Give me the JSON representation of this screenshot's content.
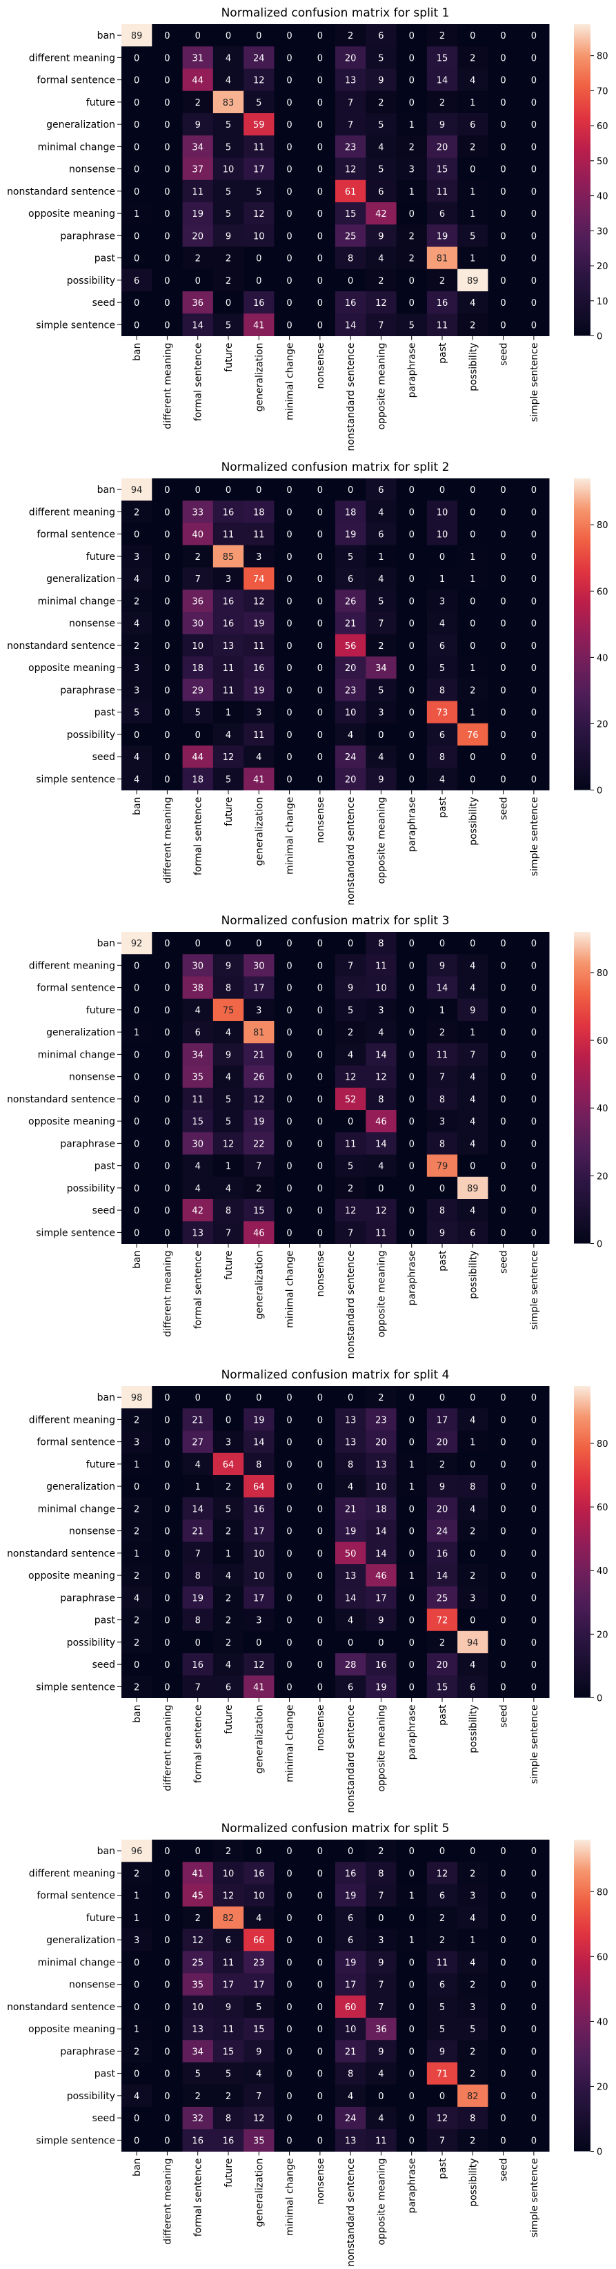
{
  "labels": [
    "ban",
    "different meaning",
    "formal sentence",
    "future",
    "generalization",
    "minimal change",
    "nonsense",
    "nonstandard sentence",
    "opposite meaning",
    "paraphrase",
    "past",
    "possibility",
    "seed",
    "simple sentence"
  ],
  "chart_data": [
    {
      "type": "heatmap",
      "title": "Normalized confusion matrix for split 1",
      "colorbar": {
        "min": 0,
        "max": 89,
        "ticks": [
          0,
          10,
          20,
          30,
          40,
          50,
          60,
          70,
          80
        ]
      },
      "values": [
        [
          89,
          0,
          0,
          0,
          0,
          0,
          0,
          2,
          6,
          0,
          2,
          0,
          0,
          0
        ],
        [
          0,
          0,
          31,
          4,
          24,
          0,
          0,
          20,
          5,
          0,
          15,
          2,
          0,
          0
        ],
        [
          0,
          0,
          44,
          4,
          12,
          0,
          0,
          13,
          9,
          0,
          14,
          4,
          0,
          0
        ],
        [
          0,
          0,
          2,
          83,
          5,
          0,
          0,
          7,
          2,
          0,
          2,
          1,
          0,
          0
        ],
        [
          0,
          0,
          9,
          5,
          59,
          0,
          0,
          7,
          5,
          1,
          9,
          6,
          0,
          0
        ],
        [
          0,
          0,
          34,
          5,
          11,
          0,
          0,
          23,
          4,
          2,
          20,
          2,
          0,
          0
        ],
        [
          0,
          0,
          37,
          10,
          17,
          0,
          0,
          12,
          5,
          3,
          15,
          0,
          0,
          0
        ],
        [
          0,
          0,
          11,
          5,
          5,
          0,
          0,
          61,
          6,
          1,
          11,
          1,
          0,
          0
        ],
        [
          1,
          0,
          19,
          5,
          12,
          0,
          0,
          15,
          42,
          0,
          6,
          1,
          0,
          0
        ],
        [
          0,
          0,
          20,
          9,
          10,
          0,
          0,
          25,
          9,
          2,
          19,
          5,
          0,
          0
        ],
        [
          0,
          0,
          2,
          2,
          0,
          0,
          0,
          8,
          4,
          2,
          81,
          1,
          0,
          0
        ],
        [
          6,
          0,
          0,
          2,
          0,
          0,
          0,
          0,
          2,
          0,
          2,
          89,
          0,
          0
        ],
        [
          0,
          0,
          36,
          0,
          16,
          0,
          0,
          16,
          12,
          0,
          16,
          4,
          0,
          0
        ],
        [
          0,
          0,
          14,
          5,
          41,
          0,
          0,
          14,
          7,
          5,
          11,
          2,
          0,
          0
        ]
      ]
    },
    {
      "type": "heatmap",
      "title": "Normalized confusion matrix for split 2",
      "colorbar": {
        "min": 0,
        "max": 94,
        "ticks": [
          0,
          20,
          40,
          60,
          80
        ]
      },
      "values": [
        [
          94,
          0,
          0,
          0,
          0,
          0,
          0,
          0,
          6,
          0,
          0,
          0,
          0,
          0
        ],
        [
          2,
          0,
          33,
          16,
          18,
          0,
          0,
          18,
          4,
          0,
          10,
          0,
          0,
          0
        ],
        [
          0,
          0,
          40,
          11,
          11,
          0,
          0,
          19,
          6,
          0,
          10,
          0,
          0,
          0
        ],
        [
          3,
          0,
          2,
          85,
          3,
          0,
          0,
          5,
          1,
          0,
          0,
          1,
          0,
          0
        ],
        [
          4,
          0,
          7,
          3,
          74,
          0,
          0,
          6,
          4,
          0,
          1,
          1,
          0,
          0
        ],
        [
          2,
          0,
          36,
          16,
          12,
          0,
          0,
          26,
          5,
          0,
          3,
          0,
          0,
          0
        ],
        [
          4,
          0,
          30,
          16,
          19,
          0,
          0,
          21,
          7,
          0,
          4,
          0,
          0,
          0
        ],
        [
          2,
          0,
          10,
          13,
          11,
          0,
          0,
          56,
          2,
          0,
          6,
          0,
          0,
          0
        ],
        [
          3,
          0,
          18,
          11,
          16,
          0,
          0,
          20,
          34,
          0,
          5,
          1,
          0,
          0
        ],
        [
          3,
          0,
          29,
          11,
          19,
          0,
          0,
          23,
          5,
          0,
          8,
          2,
          0,
          0
        ],
        [
          5,
          0,
          5,
          1,
          3,
          0,
          0,
          10,
          3,
          0,
          73,
          1,
          0,
          0
        ],
        [
          0,
          0,
          0,
          4,
          11,
          0,
          0,
          4,
          0,
          0,
          6,
          76,
          0,
          0
        ],
        [
          4,
          0,
          44,
          12,
          4,
          0,
          0,
          24,
          4,
          0,
          8,
          0,
          0,
          0
        ],
        [
          4,
          0,
          18,
          5,
          41,
          0,
          0,
          20,
          9,
          0,
          4,
          0,
          0,
          0
        ]
      ]
    },
    {
      "type": "heatmap",
      "title": "Normalized confusion matrix for split 3",
      "colorbar": {
        "min": 0,
        "max": 92,
        "ticks": [
          0,
          20,
          40,
          60,
          80
        ]
      },
      "values": [
        [
          92,
          0,
          0,
          0,
          0,
          0,
          0,
          0,
          8,
          0,
          0,
          0,
          0,
          0
        ],
        [
          0,
          0,
          30,
          9,
          30,
          0,
          0,
          7,
          11,
          0,
          9,
          4,
          0,
          0
        ],
        [
          0,
          0,
          38,
          8,
          17,
          0,
          0,
          9,
          10,
          0,
          14,
          4,
          0,
          0
        ],
        [
          0,
          0,
          4,
          75,
          3,
          0,
          0,
          5,
          3,
          0,
          1,
          9,
          0,
          0
        ],
        [
          1,
          0,
          6,
          4,
          81,
          0,
          0,
          2,
          4,
          0,
          2,
          1,
          0,
          0
        ],
        [
          0,
          0,
          34,
          9,
          21,
          0,
          0,
          4,
          14,
          0,
          11,
          7,
          0,
          0
        ],
        [
          0,
          0,
          35,
          4,
          26,
          0,
          0,
          12,
          12,
          0,
          7,
          4,
          0,
          0
        ],
        [
          0,
          0,
          11,
          5,
          12,
          0,
          0,
          52,
          8,
          0,
          8,
          4,
          0,
          0
        ],
        [
          0,
          0,
          15,
          5,
          19,
          0,
          0,
          0,
          46,
          0,
          3,
          4,
          0,
          0
        ],
        [
          0,
          0,
          30,
          12,
          22,
          0,
          0,
          11,
          14,
          0,
          8,
          4,
          0,
          0
        ],
        [
          0,
          0,
          4,
          1,
          7,
          0,
          0,
          5,
          4,
          0,
          79,
          0,
          0,
          0
        ],
        [
          0,
          0,
          4,
          4,
          2,
          0,
          0,
          2,
          0,
          0,
          0,
          89,
          0,
          0
        ],
        [
          0,
          0,
          42,
          8,
          15,
          0,
          0,
          12,
          12,
          0,
          8,
          4,
          0,
          0
        ],
        [
          0,
          0,
          13,
          7,
          46,
          0,
          0,
          7,
          11,
          0,
          9,
          6,
          0,
          0
        ]
      ]
    },
    {
      "type": "heatmap",
      "title": "Normalized confusion matrix for split 4",
      "colorbar": {
        "min": 0,
        "max": 98,
        "ticks": [
          0,
          20,
          40,
          60,
          80
        ]
      },
      "values": [
        [
          98,
          0,
          0,
          0,
          0,
          0,
          0,
          0,
          2,
          0,
          0,
          0,
          0,
          0
        ],
        [
          2,
          0,
          21,
          0,
          19,
          0,
          0,
          13,
          23,
          0,
          17,
          4,
          0,
          0
        ],
        [
          3,
          0,
          27,
          3,
          14,
          0,
          0,
          13,
          20,
          0,
          20,
          1,
          0,
          0
        ],
        [
          1,
          0,
          4,
          64,
          8,
          0,
          0,
          8,
          13,
          1,
          2,
          0,
          0,
          0
        ],
        [
          0,
          0,
          1,
          2,
          64,
          0,
          0,
          4,
          10,
          1,
          9,
          8,
          0,
          0
        ],
        [
          2,
          0,
          14,
          5,
          16,
          0,
          0,
          21,
          18,
          0,
          20,
          4,
          0,
          0
        ],
        [
          2,
          0,
          21,
          2,
          17,
          0,
          0,
          19,
          14,
          0,
          24,
          2,
          0,
          0
        ],
        [
          1,
          0,
          7,
          1,
          10,
          0,
          0,
          50,
          14,
          0,
          16,
          0,
          0,
          0
        ],
        [
          2,
          0,
          8,
          4,
          10,
          0,
          0,
          13,
          46,
          1,
          14,
          2,
          0,
          0
        ],
        [
          4,
          0,
          19,
          2,
          17,
          0,
          0,
          14,
          17,
          0,
          25,
          3,
          0,
          0
        ],
        [
          2,
          0,
          8,
          2,
          3,
          0,
          0,
          4,
          9,
          0,
          72,
          0,
          0,
          0
        ],
        [
          2,
          0,
          0,
          2,
          0,
          0,
          0,
          0,
          0,
          0,
          2,
          94,
          0,
          0
        ],
        [
          0,
          0,
          16,
          4,
          12,
          0,
          0,
          28,
          16,
          0,
          20,
          4,
          0,
          0
        ],
        [
          2,
          0,
          7,
          6,
          41,
          0,
          0,
          6,
          19,
          0,
          15,
          6,
          0,
          0
        ]
      ]
    },
    {
      "type": "heatmap",
      "title": "Normalized confusion matrix for split 5",
      "colorbar": {
        "min": 0,
        "max": 96,
        "ticks": [
          0,
          20,
          40,
          60,
          80
        ]
      },
      "values": [
        [
          96,
          0,
          0,
          2,
          0,
          0,
          0,
          0,
          2,
          0,
          0,
          0,
          0,
          0
        ],
        [
          2,
          0,
          41,
          10,
          16,
          0,
          0,
          16,
          8,
          0,
          12,
          2,
          0,
          0
        ],
        [
          1,
          0,
          45,
          12,
          10,
          0,
          0,
          19,
          7,
          1,
          6,
          3,
          0,
          0
        ],
        [
          1,
          0,
          2,
          82,
          4,
          0,
          0,
          6,
          0,
          0,
          2,
          4,
          0,
          0
        ],
        [
          3,
          0,
          12,
          6,
          66,
          0,
          0,
          6,
          3,
          1,
          2,
          1,
          0,
          0
        ],
        [
          0,
          0,
          25,
          11,
          23,
          0,
          0,
          19,
          9,
          0,
          11,
          4,
          0,
          0
        ],
        [
          0,
          0,
          35,
          17,
          17,
          0,
          0,
          17,
          7,
          0,
          6,
          2,
          0,
          0
        ],
        [
          0,
          0,
          10,
          9,
          5,
          0,
          0,
          60,
          7,
          0,
          5,
          3,
          0,
          0
        ],
        [
          1,
          0,
          13,
          11,
          15,
          0,
          0,
          10,
          36,
          0,
          5,
          5,
          0,
          0
        ],
        [
          2,
          0,
          34,
          15,
          9,
          0,
          0,
          21,
          9,
          0,
          9,
          2,
          0,
          0
        ],
        [
          0,
          0,
          5,
          5,
          4,
          0,
          0,
          8,
          4,
          0,
          71,
          2,
          0,
          0
        ],
        [
          4,
          0,
          2,
          2,
          7,
          0,
          0,
          4,
          0,
          0,
          0,
          82,
          0,
          0
        ],
        [
          0,
          0,
          32,
          8,
          12,
          0,
          0,
          24,
          4,
          0,
          12,
          8,
          0,
          0
        ],
        [
          0,
          0,
          16,
          16,
          35,
          0,
          0,
          13,
          11,
          0,
          7,
          2,
          0,
          0
        ]
      ]
    }
  ]
}
